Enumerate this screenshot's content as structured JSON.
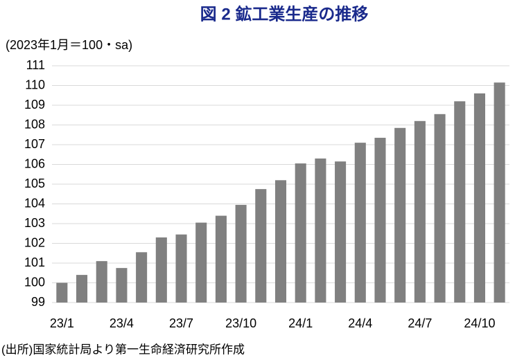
{
  "chart_data": {
    "type": "bar",
    "title": "図 2 鉱工業生産の推移",
    "subtitle": "(2023年1月＝100・sa)",
    "categories": [
      "23/1",
      null,
      null,
      "23/4",
      null,
      null,
      "23/7",
      null,
      null,
      "23/10",
      null,
      null,
      "24/1",
      null,
      null,
      "24/4",
      null,
      null,
      "24/7",
      null,
      null,
      "24/10",
      null
    ],
    "values": [
      100.0,
      100.4,
      101.1,
      100.75,
      101.55,
      102.3,
      102.45,
      103.05,
      103.4,
      103.95,
      104.75,
      105.2,
      106.05,
      106.3,
      106.15,
      107.1,
      107.35,
      107.85,
      108.2,
      108.55,
      109.2,
      109.6,
      110.15
    ],
    "color": "#808080",
    "ylim": [
      99,
      111
    ],
    "yticks": [
      99,
      100,
      101,
      102,
      103,
      104,
      105,
      106,
      107,
      108,
      109,
      110,
      111
    ],
    "grid": true,
    "source": "(出所)国家統計局より第一生命経済研究所作成"
  }
}
